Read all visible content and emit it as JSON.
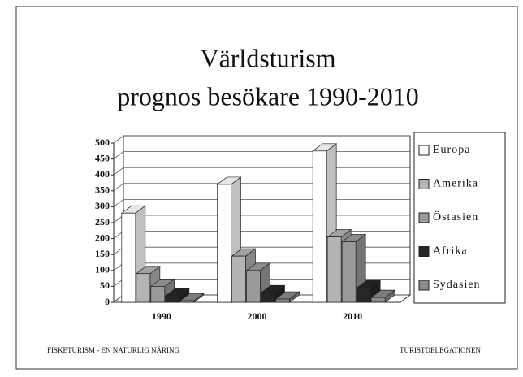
{
  "chart_data": {
    "type": "bar3d",
    "title": "Världsturism",
    "subtitle": "prognos besökare 1990-2010",
    "categories": [
      "1990",
      "2000",
      "2010"
    ],
    "series": [
      {
        "name": "Europa",
        "color": "#ffffff",
        "values": [
          280,
          370,
          475
        ]
      },
      {
        "name": "Amerika",
        "color": "#b4b4b4",
        "values": [
          90,
          145,
          205
        ]
      },
      {
        "name": "Östasien",
        "color": "#9a9a9a",
        "values": [
          50,
          100,
          190
        ]
      },
      {
        "name": "Afrika",
        "color": "#262626",
        "values": [
          20,
          30,
          45
        ]
      },
      {
        "name": "Sydasien",
        "color": "#8a8a8a",
        "values": [
          5,
          10,
          15
        ]
      }
    ],
    "ylim": [
      0,
      500
    ],
    "yticks": [
      0,
      50,
      100,
      150,
      200,
      250,
      300,
      350,
      400,
      450,
      500
    ],
    "grid": true
  },
  "footer": {
    "left": "FISKETURISM - EN NATURLIG NÄRING",
    "right": "TURISTDELEGATIONEN"
  }
}
